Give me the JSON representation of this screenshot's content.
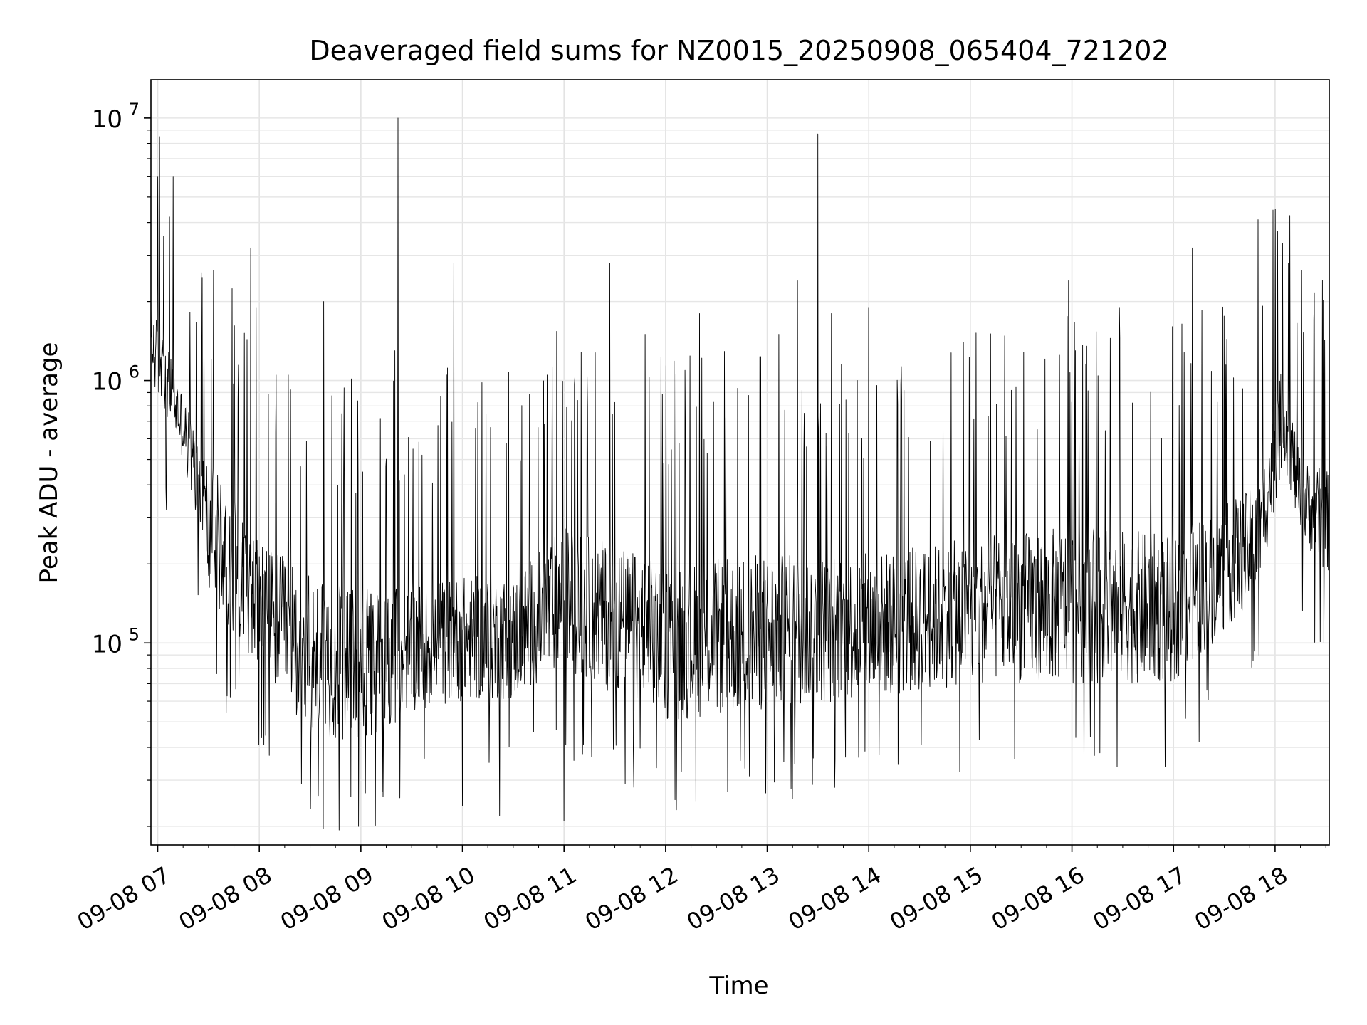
{
  "chart_data": {
    "type": "line",
    "title": "Deaveraged field sums for NZ0015_20250908_065404_721202",
    "xlabel": "Time",
    "ylabel": "Peak ADU - average",
    "yscale": "log",
    "ylim": [
      17000,
      14000000
    ],
    "xlim": [
      "2025-09-08 06:56",
      "2025-09-08 18:32"
    ],
    "grid": true,
    "legend": "none",
    "x_ticks": [
      {
        "t": "2025-09-08 07:00",
        "label": "09-08 07"
      },
      {
        "t": "2025-09-08 08:00",
        "label": "09-08 08"
      },
      {
        "t": "2025-09-08 09:00",
        "label": "09-08 09"
      },
      {
        "t": "2025-09-08 10:00",
        "label": "09-08 10"
      },
      {
        "t": "2025-09-08 11:00",
        "label": "09-08 11"
      },
      {
        "t": "2025-09-08 12:00",
        "label": "09-08 12"
      },
      {
        "t": "2025-09-08 13:00",
        "label": "09-08 13"
      },
      {
        "t": "2025-09-08 14:00",
        "label": "09-08 14"
      },
      {
        "t": "2025-09-08 15:00",
        "label": "09-08 15"
      },
      {
        "t": "2025-09-08 16:00",
        "label": "09-08 16"
      },
      {
        "t": "2025-09-08 17:00",
        "label": "09-08 17"
      },
      {
        "t": "2025-09-08 18:00",
        "label": "09-08 18"
      }
    ],
    "y_ticks": [
      {
        "value": 100000,
        "base": "10",
        "exp": "5"
      },
      {
        "value": 1000000,
        "base": "10",
        "exp": "6"
      },
      {
        "value": 10000000,
        "base": "10",
        "exp": "7"
      }
    ],
    "series": [
      {
        "color": "#000000",
        "baseline_envelope": [
          {
            "t": "2025-09-08 06:56",
            "low": 1000000,
            "high": 2000000
          },
          {
            "t": "2025-09-08 07:15",
            "low": 500000,
            "high": 900000
          },
          {
            "t": "2025-09-08 07:30",
            "low": 150000,
            "high": 500000
          },
          {
            "t": "2025-09-08 08:00",
            "low": 80000,
            "high": 250000
          },
          {
            "t": "2025-09-08 08:30",
            "low": 45000,
            "high": 180000
          },
          {
            "t": "2025-09-08 09:00",
            "low": 40000,
            "high": 160000
          },
          {
            "t": "2025-09-08 09:30",
            "low": 55000,
            "high": 170000
          },
          {
            "t": "2025-09-08 10:00",
            "low": 60000,
            "high": 180000
          },
          {
            "t": "2025-09-08 10:30",
            "low": 60000,
            "high": 180000
          },
          {
            "t": "2025-09-08 11:00",
            "low": 80000,
            "high": 280000
          },
          {
            "t": "2025-09-08 12:00",
            "low": 50000,
            "high": 200000
          },
          {
            "t": "2025-09-08 13:00",
            "low": 55000,
            "high": 220000
          },
          {
            "t": "2025-09-08 14:00",
            "low": 60000,
            "high": 220000
          },
          {
            "t": "2025-09-08 15:00",
            "low": 70000,
            "high": 250000
          },
          {
            "t": "2025-09-08 16:00",
            "low": 70000,
            "high": 280000
          },
          {
            "t": "2025-09-08 17:00",
            "low": 70000,
            "high": 260000
          },
          {
            "t": "2025-09-08 17:50",
            "low": 150000,
            "high": 400000
          },
          {
            "t": "2025-09-08 18:05",
            "low": 500000,
            "high": 1200000
          },
          {
            "t": "2025-09-08 18:15",
            "low": 250000,
            "high": 500000
          },
          {
            "t": "2025-09-08 18:32",
            "low": 180000,
            "high": 450000
          }
        ],
        "spikes": [
          {
            "t": "2025-09-08 07:01",
            "value": 8500000
          },
          {
            "t": "2025-09-08 07:00",
            "value": 6000000
          },
          {
            "t": "2025-09-08 07:09",
            "value": 6000000
          },
          {
            "t": "2025-09-08 07:07",
            "value": 4200000
          },
          {
            "t": "2025-09-08 07:55",
            "value": 3200000
          },
          {
            "t": "2025-09-08 07:58",
            "value": 1900000
          },
          {
            "t": "2025-09-08 08:10",
            "value": 1050000
          },
          {
            "t": "2025-09-08 08:38",
            "value": 2000000
          },
          {
            "t": "2025-09-08 09:22",
            "value": 10000000
          },
          {
            "t": "2025-09-08 09:20",
            "value": 1300000
          },
          {
            "t": "2025-09-08 09:55",
            "value": 2800000
          },
          {
            "t": "2025-09-08 10:22",
            "value": 2400000
          },
          {
            "t": "2025-09-08 10:50",
            "value": 1050000
          },
          {
            "t": "2025-09-08 11:00",
            "value": 3300000
          },
          {
            "t": "2025-09-08 11:27",
            "value": 2800000
          },
          {
            "t": "2025-09-08 11:48",
            "value": 1500000
          },
          {
            "t": "2025-09-08 12:20",
            "value": 1800000
          },
          {
            "t": "2025-09-08 13:07",
            "value": 1500000
          },
          {
            "t": "2025-09-08 13:18",
            "value": 2400000
          },
          {
            "t": "2025-09-08 13:30",
            "value": 8700000
          },
          {
            "t": "2025-09-08 13:38",
            "value": 1800000
          },
          {
            "t": "2025-09-08 14:00",
            "value": 1900000
          },
          {
            "t": "2025-09-08 14:56",
            "value": 1400000
          },
          {
            "t": "2025-09-08 15:58",
            "value": 2400000
          },
          {
            "t": "2025-09-08 16:28",
            "value": 1900000
          },
          {
            "t": "2025-09-08 17:11",
            "value": 3200000
          },
          {
            "t": "2025-09-08 17:50",
            "value": 4100000
          },
          {
            "t": "2025-09-08 18:00",
            "value": 4500000
          },
          {
            "t": "2025-09-08 18:08",
            "value": 2800000
          },
          {
            "t": "2025-09-08 18:23",
            "value": 1700000
          }
        ],
        "dips": [
          {
            "t": "2025-09-08 08:54",
            "value": 26000
          },
          {
            "t": "2025-09-08 09:13",
            "value": 26000
          },
          {
            "t": "2025-09-08 10:00",
            "value": 24000
          },
          {
            "t": "2025-09-08 10:22",
            "value": 22000
          },
          {
            "t": "2025-09-08 11:00",
            "value": 21000
          },
          {
            "t": "2025-09-08 11:36",
            "value": 29000
          },
          {
            "t": "2025-09-08 08:25",
            "value": 29000
          }
        ]
      }
    ]
  }
}
